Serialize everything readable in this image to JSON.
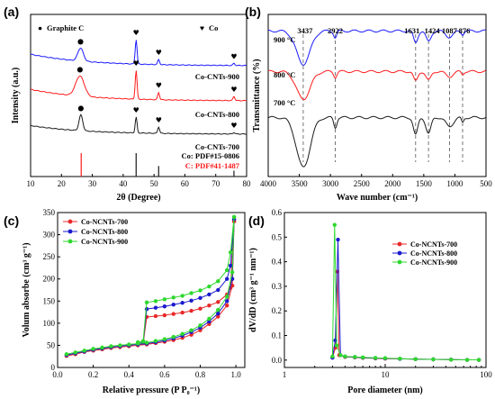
{
  "panels": [
    {
      "label": "(a)",
      "chart_data": {
        "type": "line",
        "xlabel": "2θ (Degree)",
        "ylabel": "Intensity (a.u.)",
        "xlim": [
          10,
          80
        ],
        "xticks": [
          10,
          20,
          30,
          40,
          50,
          60,
          70,
          80
        ],
        "grid": false,
        "legend": [
          {
            "symbol": "●",
            "name": "Graphite C"
          },
          {
            "symbol": "♥",
            "name": "Co"
          }
        ],
        "series": [
          {
            "name": "Co-CNTs-900",
            "color": "#1a1aff",
            "baseline": 0.8,
            "peaks": [
              {
                "x": 26.2,
                "h": 0.9,
                "w": 0.9,
                "marker": "●"
              },
              {
                "x": 44.2,
                "h": 1.7,
                "w": 0.3,
                "marker": "♥"
              },
              {
                "x": 51.5,
                "h": 0.35,
                "w": 0.3,
                "marker": "♥"
              },
              {
                "x": 75.9,
                "h": 0.15,
                "w": 0.3,
                "marker": "♥"
              }
            ]
          },
          {
            "name": "Co-CNTs-800",
            "color": "#ff1a1a",
            "baseline": 0.8,
            "peaks": [
              {
                "x": 26.0,
                "h": 1.4,
                "w": 1.4,
                "marker": "●"
              },
              {
                "x": 44.2,
                "h": 2.0,
                "w": 0.3,
                "marker": "♥"
              },
              {
                "x": 51.5,
                "h": 0.5,
                "w": 0.3,
                "marker": "♥"
              },
              {
                "x": 75.9,
                "h": 0.3,
                "w": 0.3,
                "marker": "♥"
              }
            ]
          },
          {
            "name": "Co-CNTs-700",
            "color": "#1a1a1a",
            "baseline": 0.6,
            "peaks": [
              {
                "x": 26.3,
                "h": 1.1,
                "w": 0.6,
                "marker": "●"
              },
              {
                "x": 44.2,
                "h": 1.1,
                "w": 0.3,
                "marker": "♥"
              },
              {
                "x": 51.5,
                "h": 0.45,
                "w": 0.3,
                "marker": "♥"
              },
              {
                "x": 75.9,
                "h": 0.1,
                "w": 0.3,
                "marker": "♥"
              }
            ]
          }
        ],
        "reference_lines": [
          {
            "label": "Co:  PDF#15-0806",
            "color": "#1a1a1a",
            "x": [
              44.2,
              51.5,
              75.9
            ],
            "h": [
              1.0,
              0.45,
              0.25
            ]
          },
          {
            "label": "C:  PDF#41-1487",
            "color": "#ff1a1a",
            "x": [
              26.4
            ],
            "h": [
              1.0
            ]
          }
        ]
      }
    },
    {
      "label": "(b)",
      "chart_data": {
        "type": "line",
        "xlabel": "Wave number (cm⁻¹)",
        "ylabel": "Transmittance (%)",
        "xlim": [
          4000,
          500
        ],
        "xticks": [
          4000,
          3500,
          3000,
          2500,
          2000,
          1500,
          1000,
          500
        ],
        "grid": false,
        "annotations": [
          "3437",
          "2922",
          "1631",
          "1424",
          "1087",
          "876"
        ],
        "annotation_x": [
          3437,
          2922,
          1631,
          1424,
          1087,
          876
        ],
        "bands": [
          {
            "x": 3437,
            "w": 110,
            "depth": 1.0
          },
          {
            "x": 2922,
            "w": 25,
            "depth": 0.2
          },
          {
            "x": 1631,
            "w": 35,
            "depth": 0.35
          },
          {
            "x": 1424,
            "w": 40,
            "depth": 0.32
          },
          {
            "x": 1087,
            "w": 60,
            "depth": 0.18
          },
          {
            "x": 876,
            "w": 20,
            "depth": 0.1
          }
        ],
        "series": [
          {
            "name": "900 °C",
            "color": "#1a1aff",
            "offset": 3.0,
            "amp": 0.9
          },
          {
            "name": "800 °C",
            "color": "#ff1a1a",
            "offset": 1.9,
            "amp": 0.75
          },
          {
            "name": "700 °C",
            "color": "#1a1a1a",
            "offset": 0.65,
            "amp": 1.35
          }
        ],
        "ylim": [
          -0.95,
          3.45
        ]
      }
    },
    {
      "label": "(c)",
      "chart_data": {
        "type": "scatter",
        "xlabel": "Relative pressure (P P₀⁻¹)",
        "ylabel": "Volum absorbe (cm³ g⁻¹)",
        "xlim": [
          0,
          1.05
        ],
        "ylim": [
          0,
          350
        ],
        "xticks": [
          0.0,
          0.2,
          0.4,
          0.6,
          0.8,
          1.0
        ],
        "xtick_labels": [
          "0.0",
          "0.2",
          "0.4",
          "0.6",
          "0.8",
          "1.0"
        ],
        "yticks": [
          0,
          50,
          100,
          150,
          200,
          250,
          300,
          350
        ],
        "grid": false,
        "legend_position": "top-left",
        "series": [
          {
            "name": "Co-NCNTs-700",
            "color": "#e82828",
            "adsorption": [
              [
                0.05,
                26
              ],
              [
                0.1,
                30
              ],
              [
                0.15,
                35
              ],
              [
                0.2,
                38
              ],
              [
                0.25,
                41
              ],
              [
                0.3,
                44
              ],
              [
                0.35,
                46
              ],
              [
                0.4,
                48
              ],
              [
                0.45,
                50
              ],
              [
                0.5,
                52
              ],
              [
                0.55,
                55
              ],
              [
                0.6,
                58
              ],
              [
                0.65,
                62
              ],
              [
                0.7,
                67
              ],
              [
                0.75,
                74
              ],
              [
                0.8,
                84
              ],
              [
                0.85,
                98
              ],
              [
                0.9,
                115
              ],
              [
                0.95,
                140
              ],
              [
                0.98,
                185
              ],
              [
                0.99,
                330
              ]
            ],
            "desorption": [
              [
                0.99,
                330
              ],
              [
                0.97,
                180
              ],
              [
                0.95,
                165
              ],
              [
                0.9,
                148
              ],
              [
                0.85,
                140
              ],
              [
                0.8,
                133
              ],
              [
                0.75,
                128
              ],
              [
                0.7,
                124
              ],
              [
                0.65,
                121
              ],
              [
                0.6,
                118
              ],
              [
                0.55,
                116
              ],
              [
                0.5,
                114
              ],
              [
                0.48,
                55
              ],
              [
                0.45,
                52
              ]
            ]
          },
          {
            "name": "Co-NCNTs-800",
            "color": "#1a1acd",
            "adsorption": [
              [
                0.05,
                28
              ],
              [
                0.1,
                32
              ],
              [
                0.15,
                36
              ],
              [
                0.2,
                40
              ],
              [
                0.25,
                43
              ],
              [
                0.3,
                46
              ],
              [
                0.35,
                48
              ],
              [
                0.4,
                50
              ],
              [
                0.45,
                52
              ],
              [
                0.5,
                54
              ],
              [
                0.55,
                57
              ],
              [
                0.6,
                61
              ],
              [
                0.65,
                66
              ],
              [
                0.7,
                72
              ],
              [
                0.75,
                80
              ],
              [
                0.8,
                90
              ],
              [
                0.85,
                104
              ],
              [
                0.9,
                122
              ],
              [
                0.95,
                150
              ],
              [
                0.98,
                200
              ],
              [
                0.99,
                335
              ]
            ],
            "desorption": [
              [
                0.99,
                335
              ],
              [
                0.97,
                230
              ],
              [
                0.95,
                200
              ],
              [
                0.9,
                175
              ],
              [
                0.85,
                165
              ],
              [
                0.8,
                157
              ],
              [
                0.75,
                151
              ],
              [
                0.7,
                146
              ],
              [
                0.65,
                142
              ],
              [
                0.6,
                138
              ],
              [
                0.55,
                135
              ],
              [
                0.5,
                132
              ],
              [
                0.48,
                57
              ],
              [
                0.45,
                54
              ]
            ]
          },
          {
            "name": "Co-NCNTs-900",
            "color": "#2ed82e",
            "adsorption": [
              [
                0.05,
                30
              ],
              [
                0.1,
                34
              ],
              [
                0.15,
                38
              ],
              [
                0.2,
                42
              ],
              [
                0.25,
                45
              ],
              [
                0.3,
                48
              ],
              [
                0.35,
                50
              ],
              [
                0.4,
                52
              ],
              [
                0.45,
                54
              ],
              [
                0.5,
                56
              ],
              [
                0.55,
                60
              ],
              [
                0.6,
                64
              ],
              [
                0.65,
                69
              ],
              [
                0.7,
                76
              ],
              [
                0.75,
                84
              ],
              [
                0.8,
                95
              ],
              [
                0.85,
                110
              ],
              [
                0.9,
                130
              ],
              [
                0.95,
                160
              ],
              [
                0.98,
                215
              ],
              [
                0.99,
                340
              ]
            ],
            "desorption": [
              [
                0.99,
                340
              ],
              [
                0.97,
                260
              ],
              [
                0.95,
                220
              ],
              [
                0.9,
                195
              ],
              [
                0.85,
                183
              ],
              [
                0.8,
                174
              ],
              [
                0.75,
                168
              ],
              [
                0.7,
                162
              ],
              [
                0.65,
                158
              ],
              [
                0.6,
                154
              ],
              [
                0.55,
                150
              ],
              [
                0.5,
                147
              ],
              [
                0.48,
                60
              ],
              [
                0.45,
                57
              ]
            ]
          }
        ]
      }
    },
    {
      "label": "(d)",
      "chart_data": {
        "type": "line",
        "xlabel": "Pore diameter (nm)",
        "ylabel": "dV/dD (cm³ g⁻¹ nm⁻¹)",
        "xscale": "log",
        "xlim": [
          1,
          100
        ],
        "ylim": [
          -0.03,
          0.6
        ],
        "xticks": [
          1,
          10,
          100
        ],
        "yticks": [
          0.0,
          0.1,
          0.2,
          0.3,
          0.4,
          0.5,
          0.6
        ],
        "ytick_labels": [
          "0.0",
          "0.1",
          "0.2",
          "0.3",
          "0.4",
          "0.5",
          "0.6"
        ],
        "grid": false,
        "legend_position": "top-right",
        "series": [
          {
            "name": "Co-NCNTs-700",
            "color": "#e82828",
            "points": [
              [
                3.0,
                0.01
              ],
              [
                3.2,
                0.05
              ],
              [
                3.35,
                0.36
              ],
              [
                3.5,
                0.02
              ],
              [
                4.0,
                0.013
              ],
              [
                5,
                0.011
              ],
              [
                6,
                0.009
              ],
              [
                8,
                0.007
              ],
              [
                10,
                0.006
              ],
              [
                14,
                0.005
              ],
              [
                20,
                0.004
              ],
              [
                30,
                0.003
              ],
              [
                45,
                0.002
              ],
              [
                65,
                0.001
              ],
              [
                85,
                0.001
              ]
            ]
          },
          {
            "name": "Co-NCNTs-800",
            "color": "#1a1acd",
            "points": [
              [
                3.0,
                0.01
              ],
              [
                3.2,
                0.08
              ],
              [
                3.4,
                0.49
              ],
              [
                3.6,
                0.02
              ],
              [
                4.0,
                0.014
              ],
              [
                5,
                0.012
              ],
              [
                6,
                0.01
              ],
              [
                8,
                0.008
              ],
              [
                10,
                0.007
              ],
              [
                14,
                0.005
              ],
              [
                20,
                0.004
              ],
              [
                30,
                0.003
              ],
              [
                45,
                0.002
              ],
              [
                65,
                0.001
              ],
              [
                85,
                0.001
              ]
            ]
          },
          {
            "name": "Co-NCNTs-900",
            "color": "#2ed82e",
            "points": [
              [
                3.0,
                0.015
              ],
              [
                3.15,
                0.55
              ],
              [
                3.3,
                0.06
              ],
              [
                3.6,
                0.02
              ],
              [
                4.0,
                0.015
              ],
              [
                5,
                0.013
              ],
              [
                6,
                0.011
              ],
              [
                8,
                0.009
              ],
              [
                10,
                0.008
              ],
              [
                14,
                0.006
              ],
              [
                20,
                0.004
              ],
              [
                30,
                0.003
              ],
              [
                45,
                0.002
              ],
              [
                65,
                0.001
              ],
              [
                85,
                0.001
              ]
            ]
          }
        ]
      }
    }
  ]
}
